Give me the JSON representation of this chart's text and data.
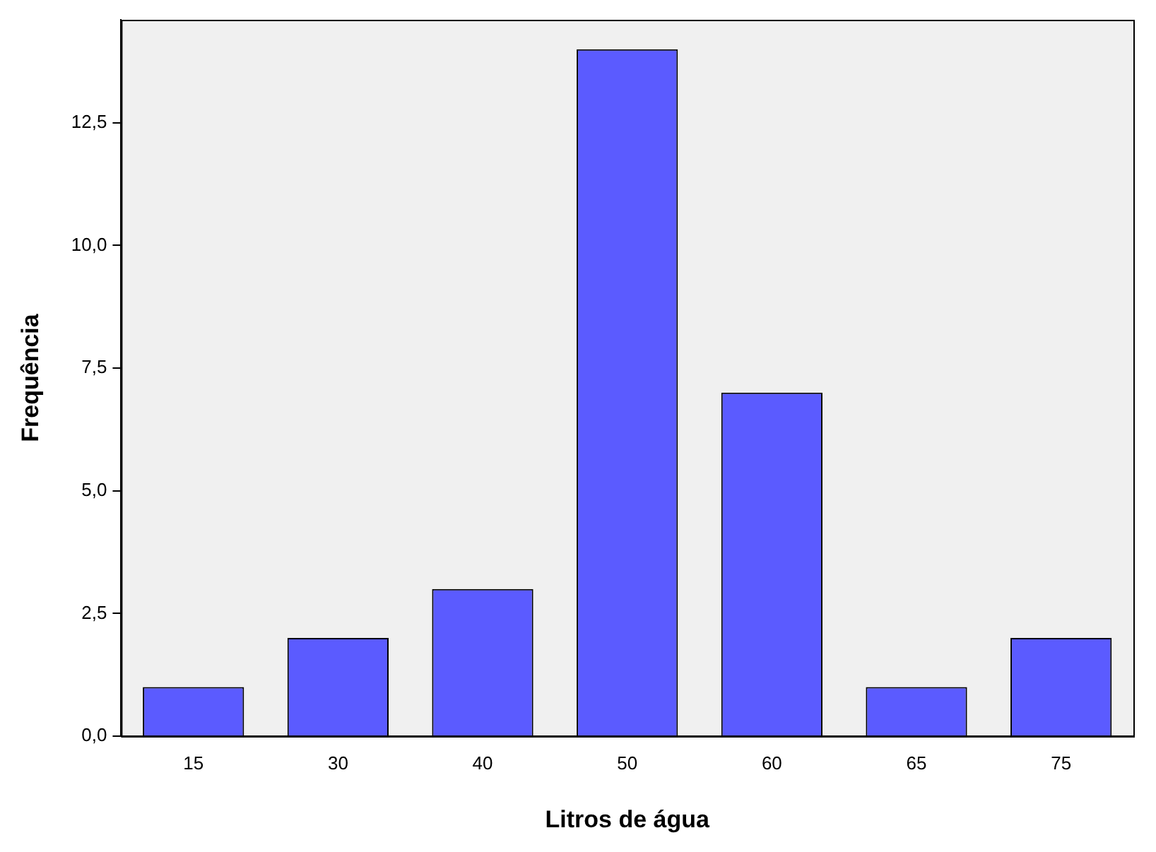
{
  "chart_data": {
    "type": "bar",
    "xlabel": "Litros de água",
    "ylabel": "Frequência",
    "categories": [
      "15",
      "30",
      "40",
      "50",
      "60",
      "65",
      "75"
    ],
    "values": [
      1,
      2,
      3,
      14,
      7,
      1,
      2
    ],
    "color": "#5b5bff",
    "ylim": [
      0,
      14.6
    ],
    "yticks": [
      {
        "value": 0,
        "label": "0,0"
      },
      {
        "value": 2.5,
        "label": "2,5"
      },
      {
        "value": 5,
        "label": "5,0"
      },
      {
        "value": 7.5,
        "label": "7,5"
      },
      {
        "value": 10,
        "label": "10,0"
      },
      {
        "value": 12.5,
        "label": "12,5"
      }
    ],
    "grid": false,
    "legend": false
  }
}
